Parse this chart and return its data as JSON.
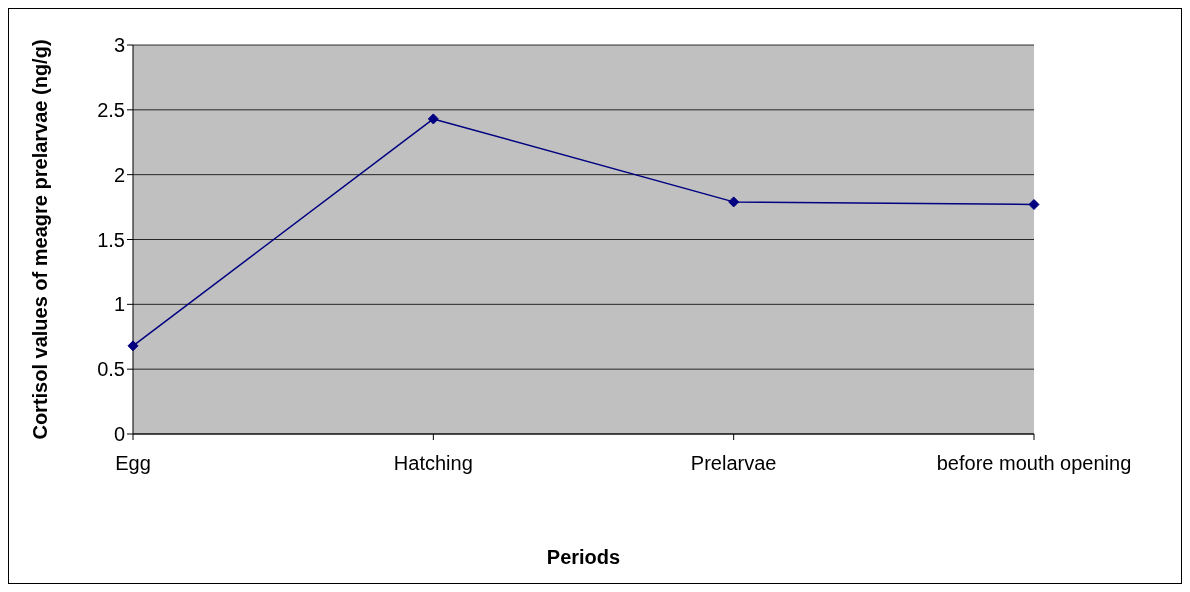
{
  "chart_data": {
    "type": "line",
    "xlabel": "Periods",
    "ylabel": "Cortisol values of meagre prelarvae (ng/g)",
    "categories": [
      "Egg",
      "Hatching",
      "Prelarvae",
      "before mouth opening"
    ],
    "series": [
      {
        "color": "#000080",
        "values": [
          0.68,
          2.43,
          1.79,
          1.77
        ]
      }
    ],
    "ylim": [
      0,
      3
    ],
    "yticks": [
      0,
      0.5,
      1,
      1.5,
      2,
      2.5,
      3
    ],
    "grid": "y",
    "legend": false,
    "marker": "diamond",
    "line_style": "solid"
  }
}
